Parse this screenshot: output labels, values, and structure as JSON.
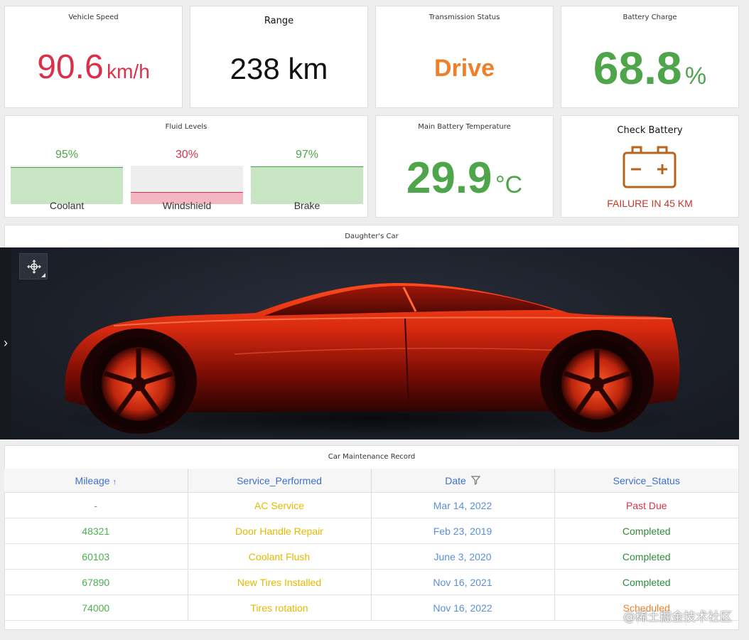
{
  "vehicle_speed": {
    "title": "Vehicle Speed",
    "value": "90.6",
    "unit": "km/h",
    "color": "#d9314a"
  },
  "range": {
    "title": "Range",
    "value": "238 km"
  },
  "transmission": {
    "title": "Transmission Status",
    "value": "Drive",
    "color": "#f07f2a"
  },
  "battery_charge": {
    "title": "Battery Charge",
    "value": "68.8",
    "unit": "%",
    "color": "#4fa64a"
  },
  "fluid_levels": {
    "title": "Fluid Levels",
    "items": [
      {
        "label": "Coolant",
        "percent_text": "95%",
        "level": 95,
        "color": "#4fa64a",
        "fill": "#c8e6c4"
      },
      {
        "label": "Windshield",
        "percent_text": "30%",
        "level": 30,
        "color": "#d9314a",
        "fill": "#f4b7c0"
      },
      {
        "label": "Brake",
        "percent_text": "97%",
        "level": 97,
        "color": "#4fa64a",
        "fill": "#c8e6c4"
      }
    ]
  },
  "battery_temp": {
    "title": "Main Battery Temperature",
    "value": "29.9",
    "unit": "°C",
    "color": "#4fa64a"
  },
  "check_battery": {
    "title": "Check Battery",
    "message": "FAILURE IN 45 KM",
    "icon": "battery-warning-icon",
    "color": "#c0392b",
    "icon_color": "#b5651d"
  },
  "car_view": {
    "title": "Daughter's Car",
    "expander_glyph": "›"
  },
  "maintenance": {
    "title": "Car Maintenance Record",
    "columns": [
      {
        "label": "Mileage",
        "sort": "↑"
      },
      {
        "label": "Service_Performed",
        "sort": ""
      },
      {
        "label": "Date",
        "sort": ""
      },
      {
        "label": "Service_Status",
        "sort": ""
      }
    ],
    "rows": [
      {
        "mileage": "-",
        "service": "AC Service",
        "date": "Mar 14, 2022",
        "status": "Past Due",
        "status_color": "#d9314a"
      },
      {
        "mileage": "48321",
        "service": "Door Handle Repair",
        "date": "Feb 23, 2019",
        "status": "Completed",
        "status_color": "#2e8b3a"
      },
      {
        "mileage": "60103",
        "service": "Coolant Flush",
        "date": "June 3, 2020",
        "status": "Completed",
        "status_color": "#2e8b3a"
      },
      {
        "mileage": "67890",
        "service": "New Tires Installed",
        "date": "Nov 16, 2021",
        "status": "Completed",
        "status_color": "#2e8b3a"
      },
      {
        "mileage": "74000",
        "service": "Tires rotation",
        "date": "Nov 16, 2022",
        "status": "Scheduled",
        "status_color": "#f07f2a"
      }
    ]
  },
  "watermark": "@稀土掘金技术社区"
}
